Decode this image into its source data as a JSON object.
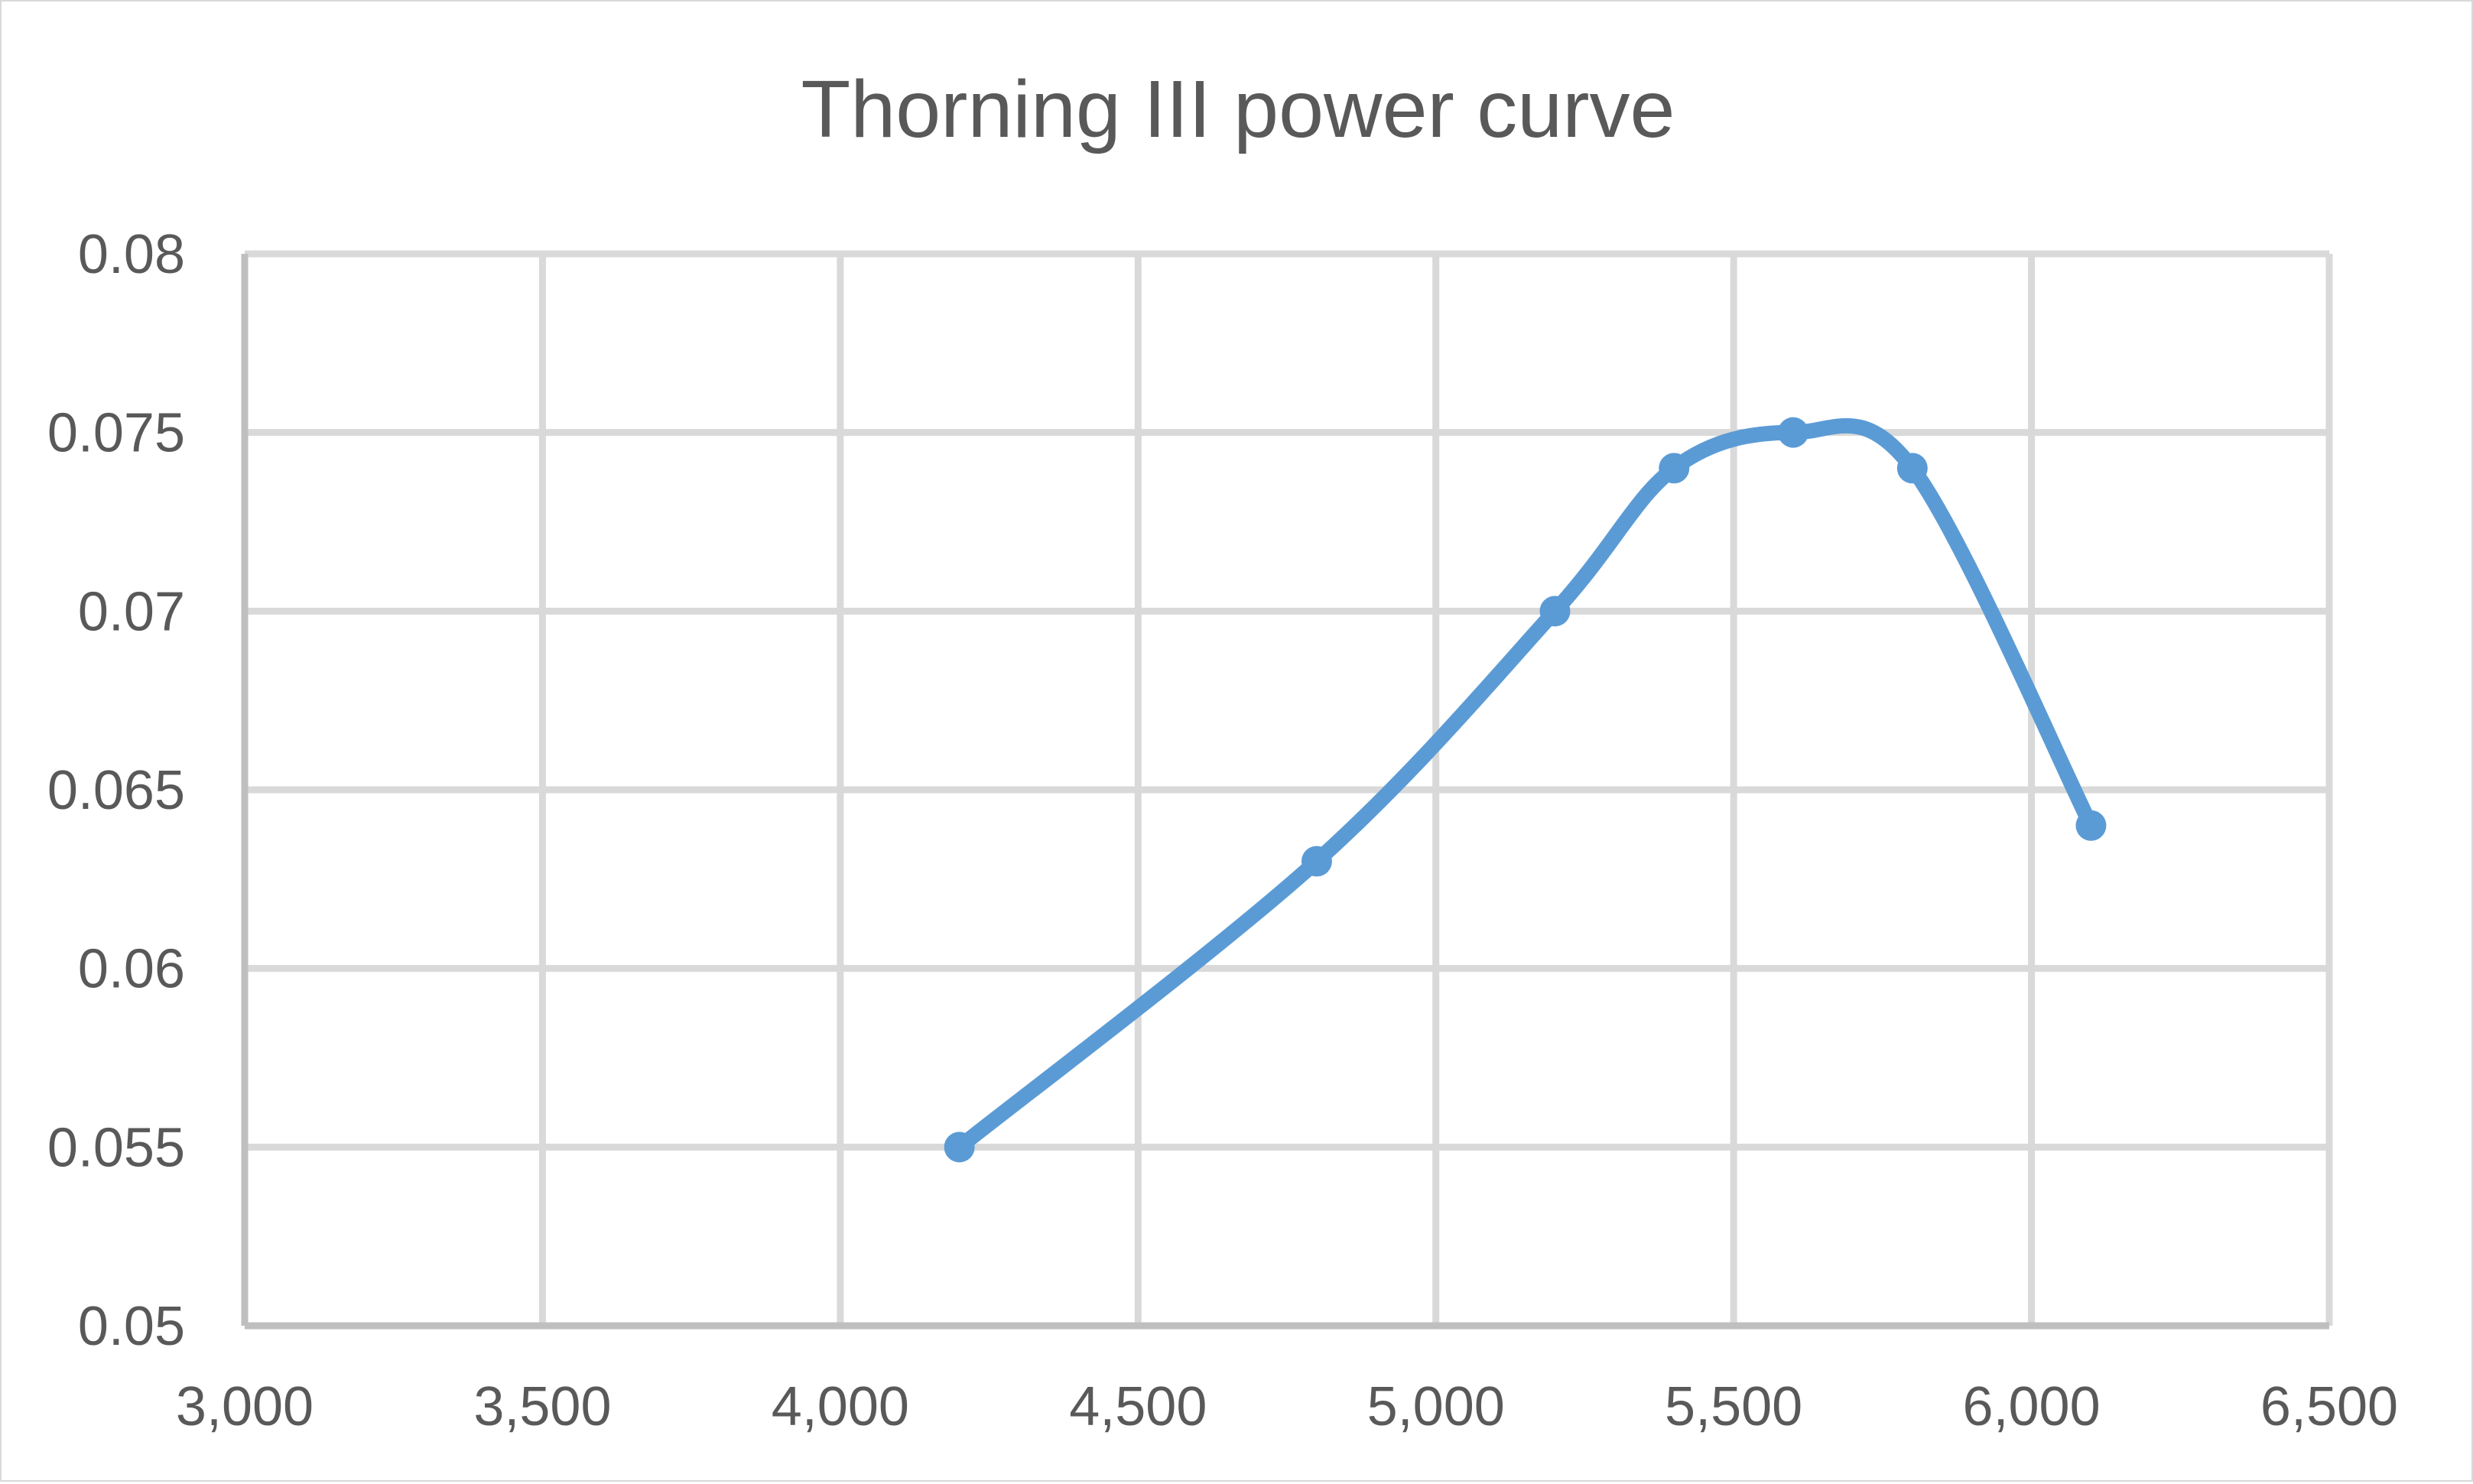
{
  "chart_data": {
    "type": "scatter",
    "title": "Thorning III power curve",
    "xlabel": "",
    "ylabel": "",
    "xlim": [
      3000,
      6500
    ],
    "ylim": [
      0.05,
      0.08
    ],
    "x_ticks": [
      3000,
      3500,
      4000,
      4500,
      5000,
      5500,
      6000,
      6500
    ],
    "x_tick_labels": [
      "3,000",
      "3,500",
      "4,000",
      "4,500",
      "5,000",
      "5,500",
      "6,000",
      "6,500"
    ],
    "y_ticks": [
      0.05,
      0.055,
      0.06,
      0.065,
      0.07,
      0.075,
      0.08
    ],
    "y_tick_labels": [
      "0.05",
      "0.055",
      "0.06",
      "0.065",
      "0.07",
      "0.075",
      "0.08"
    ],
    "grid": true,
    "legend": "none",
    "smooth_line": true,
    "series": [
      {
        "x": [
          4200,
          4800,
          5200,
          5400,
          5600,
          5800,
          6100
        ],
        "y": [
          0.055,
          0.063,
          0.07,
          0.074,
          0.075,
          0.074,
          0.064
        ],
        "color": "#5b9bd5"
      }
    ],
    "colors": {
      "grid": "#d9d9d9",
      "axis": "#bfbfbf",
      "text": "#595959",
      "series": "#5b9bd5"
    }
  }
}
